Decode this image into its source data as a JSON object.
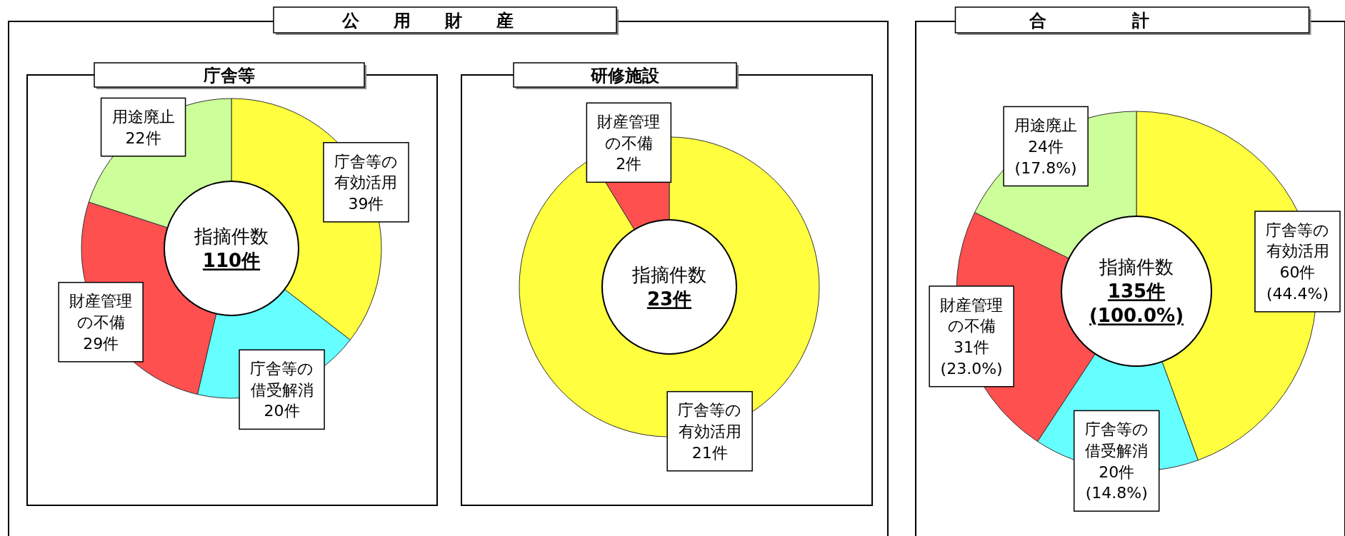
{
  "chart_data": [
    {
      "type": "donut",
      "subtitle": "公用財産",
      "title": "庁舎等",
      "categories": [
        "庁舎等の有効活用",
        "庁舎等の借受解消",
        "財産管理の不備",
        "用途廃止"
      ],
      "values": [
        39,
        20,
        29,
        22
      ],
      "colors": [
        "#ffff40",
        "#66ffff",
        "#ff5050",
        "#ccff99"
      ],
      "value_labels": [
        "39件",
        "20件",
        "29件",
        "22件"
      ],
      "annotations": [
        "指摘件数",
        "110件"
      ]
    },
    {
      "type": "donut",
      "title": "研修施設",
      "categories": [
        "庁舎等の有効活用",
        "財産管理の不備"
      ],
      "values": [
        21,
        2
      ],
      "colors": [
        "#ffff40",
        "#ff5050"
      ],
      "value_labels": [
        "21件",
        "2件"
      ],
      "annotations": [
        "指摘件数",
        "23件"
      ]
    },
    {
      "type": "donut",
      "title": "合計",
      "categories": [
        "庁舎等の有効活用",
        "庁舎等の借受解消",
        "財産管理の不備",
        "用途廃止"
      ],
      "values": [
        60,
        20,
        31,
        24
      ],
      "colors": [
        "#ffff40",
        "#66ffff",
        "#ff5050",
        "#ccff99"
      ],
      "value_labels": [
        "60件\n(44.4%)",
        "20件\n(14.8%)",
        "31件\n(23.0%)",
        "24件\n(17.8%)"
      ],
      "annotations": [
        "指摘件数",
        "135件",
        "(100.0%)"
      ]
    }
  ]
}
